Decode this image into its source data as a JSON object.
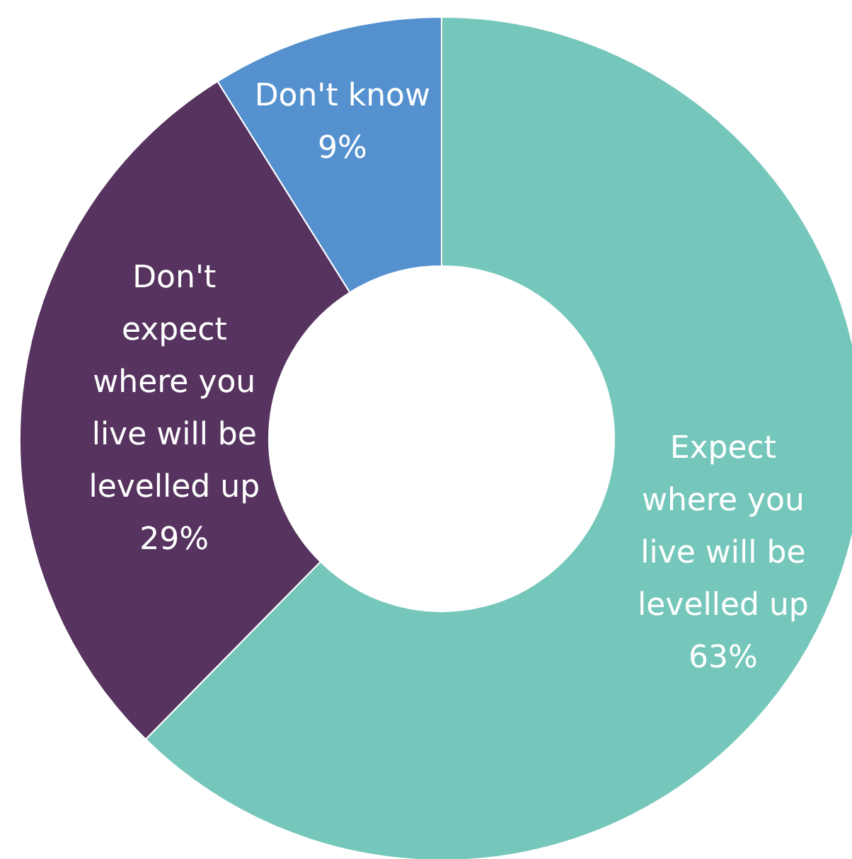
{
  "chart_data": {
    "type": "donut",
    "categories": [
      "Expect\nwhere you\nlive will be\nlevelled up",
      "Don't\nexpect\nwhere you\nlive will be\nlevelled up",
      "Don't know"
    ],
    "values": [
      63,
      29,
      9
    ],
    "colors": [
      "#76c7bb",
      "#57345f",
      "#5591cf"
    ],
    "value_labels": [
      "63%",
      "29%",
      "9%"
    ]
  }
}
